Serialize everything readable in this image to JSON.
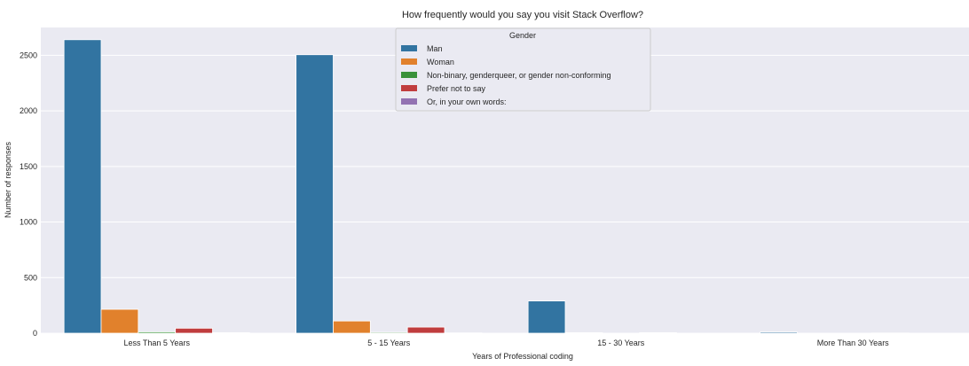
{
  "chart_data": {
    "type": "bar",
    "title": "How frequently would you say you visit Stack Overflow?",
    "xlabel": "Years of Professional coding",
    "ylabel": "Number of responses",
    "categories": [
      "Less Than 5 Years",
      "5 - 15 Years",
      "15 - 30 Years",
      "More Than 30 Years"
    ],
    "ylim": [
      0,
      2750
    ],
    "yticks": [
      0,
      500,
      1000,
      1500,
      2000,
      2500
    ],
    "grid": true,
    "legend": {
      "title": "Gender",
      "placement": "top-center"
    },
    "series": [
      {
        "name": "Man",
        "color": "#3274a1",
        "values": [
          2640,
          2505,
          290,
          10
        ]
      },
      {
        "name": "Woman",
        "color": "#e1812c",
        "values": [
          215,
          110,
          5,
          0
        ]
      },
      {
        "name": "Non-binary, genderqueer, or gender non-conforming",
        "color": "#3a923a",
        "values": [
          12,
          8,
          0,
          0
        ]
      },
      {
        "name": "Prefer not to say",
        "color": "#c03d3e",
        "values": [
          45,
          55,
          5,
          2
        ]
      },
      {
        "name": "Or, in your own words:",
        "color": "#9372b2",
        "values": [
          5,
          3,
          0,
          0
        ]
      }
    ]
  }
}
